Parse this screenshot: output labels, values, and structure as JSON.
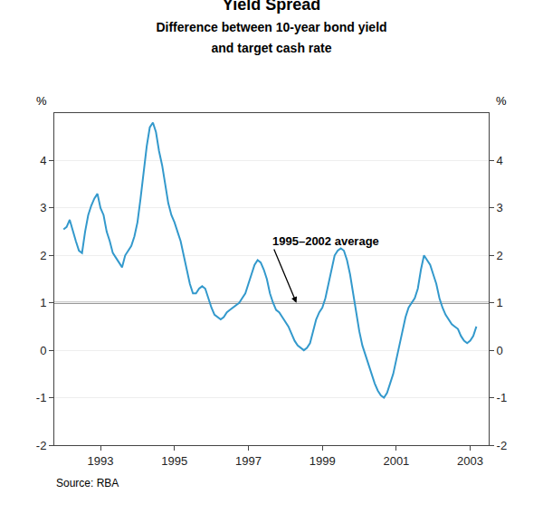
{
  "chart_data": {
    "type": "line",
    "title": "Yield Spread",
    "subtitle": "Difference between 10-year bond yield\nand target cash rate",
    "source": "Source: RBA",
    "y_label": "%",
    "y2_label": "%",
    "xlim": [
      1991.75,
      2003.5
    ],
    "xticks": [
      1993,
      1995,
      1997,
      1999,
      2001,
      2003
    ],
    "ylim": [
      -2,
      5
    ],
    "yticks": [
      -2,
      -1,
      0,
      1,
      2,
      3,
      4
    ],
    "y2lim": [
      -2,
      5
    ],
    "y2ticks": [
      -2,
      -1,
      0,
      1,
      2,
      3,
      4
    ],
    "grid": true,
    "hlines": [
      {
        "y": 1.0,
        "color": "#999999"
      }
    ],
    "annotations": [
      {
        "text": "1995–2002 average",
        "x": 1998.3,
        "y": 1.0,
        "text_x": 1997.6,
        "text_y": 2.3
      }
    ],
    "x": [
      1992.0,
      1992.083,
      1992.167,
      1992.25,
      1992.333,
      1992.417,
      1992.5,
      1992.583,
      1992.667,
      1992.75,
      1992.833,
      1992.917,
      1993.0,
      1993.083,
      1993.167,
      1993.25,
      1993.333,
      1993.417,
      1993.5,
      1993.583,
      1993.667,
      1993.75,
      1993.833,
      1993.917,
      1994.0,
      1994.083,
      1994.167,
      1994.25,
      1994.333,
      1994.417,
      1994.5,
      1994.583,
      1994.667,
      1994.75,
      1994.833,
      1994.917,
      1995.0,
      1995.083,
      1995.167,
      1995.25,
      1995.333,
      1995.417,
      1995.5,
      1995.583,
      1995.667,
      1995.75,
      1995.833,
      1995.917,
      1996.0,
      1996.083,
      1996.167,
      1996.25,
      1996.333,
      1996.417,
      1996.5,
      1996.583,
      1996.667,
      1996.75,
      1996.833,
      1996.917,
      1997.0,
      1997.083,
      1997.167,
      1997.25,
      1997.333,
      1997.417,
      1997.5,
      1997.583,
      1997.667,
      1997.75,
      1997.833,
      1997.917,
      1998.0,
      1998.083,
      1998.167,
      1998.25,
      1998.333,
      1998.417,
      1998.5,
      1998.583,
      1998.667,
      1998.75,
      1998.833,
      1998.917,
      1999.0,
      1999.083,
      1999.167,
      1999.25,
      1999.333,
      1999.417,
      1999.5,
      1999.583,
      1999.667,
      1999.75,
      1999.833,
      1999.917,
      2000.0,
      2000.083,
      2000.167,
      2000.25,
      2000.333,
      2000.417,
      2000.5,
      2000.583,
      2000.667,
      2000.75,
      2000.833,
      2000.917,
      2001.0,
      2001.083,
      2001.167,
      2001.25,
      2001.333,
      2001.417,
      2001.5,
      2001.583,
      2001.667,
      2001.75,
      2001.833,
      2001.917,
      2002.0,
      2002.083,
      2002.167,
      2002.25,
      2002.333,
      2002.417,
      2002.5,
      2002.583,
      2002.667,
      2002.75,
      2002.833,
      2002.917,
      2003.0,
      2003.083,
      2003.167
    ],
    "series": [
      {
        "color": "#3399cc",
        "values": [
          2.55,
          2.6,
          2.75,
          2.5,
          2.3,
          2.1,
          2.05,
          2.5,
          2.85,
          3.05,
          3.2,
          3.3,
          3.0,
          2.85,
          2.5,
          2.3,
          2.05,
          1.95,
          1.85,
          1.75,
          2.0,
          2.1,
          2.2,
          2.4,
          2.7,
          3.2,
          3.8,
          4.3,
          4.7,
          4.8,
          4.6,
          4.2,
          3.9,
          3.5,
          3.1,
          2.85,
          2.7,
          2.5,
          2.3,
          2.0,
          1.7,
          1.4,
          1.2,
          1.2,
          1.3,
          1.35,
          1.3,
          1.1,
          0.9,
          0.75,
          0.7,
          0.65,
          0.7,
          0.8,
          0.85,
          0.9,
          0.95,
          1.0,
          1.1,
          1.2,
          1.4,
          1.6,
          1.8,
          1.9,
          1.85,
          1.7,
          1.5,
          1.2,
          1.0,
          0.85,
          0.8,
          0.7,
          0.6,
          0.5,
          0.35,
          0.2,
          0.1,
          0.05,
          0.0,
          0.05,
          0.15,
          0.4,
          0.65,
          0.8,
          0.9,
          1.1,
          1.4,
          1.7,
          2.0,
          2.1,
          2.15,
          2.1,
          1.9,
          1.6,
          1.2,
          0.8,
          0.4,
          0.1,
          -0.1,
          -0.3,
          -0.5,
          -0.7,
          -0.85,
          -0.95,
          -1.0,
          -0.9,
          -0.7,
          -0.5,
          -0.2,
          0.1,
          0.4,
          0.7,
          0.9,
          1.0,
          1.1,
          1.3,
          1.7,
          2.0,
          1.9,
          1.8,
          1.6,
          1.4,
          1.1,
          0.9,
          0.75,
          0.65,
          0.55,
          0.5,
          0.45,
          0.3,
          0.2,
          0.15,
          0.2,
          0.3,
          0.5
        ]
      }
    ]
  }
}
